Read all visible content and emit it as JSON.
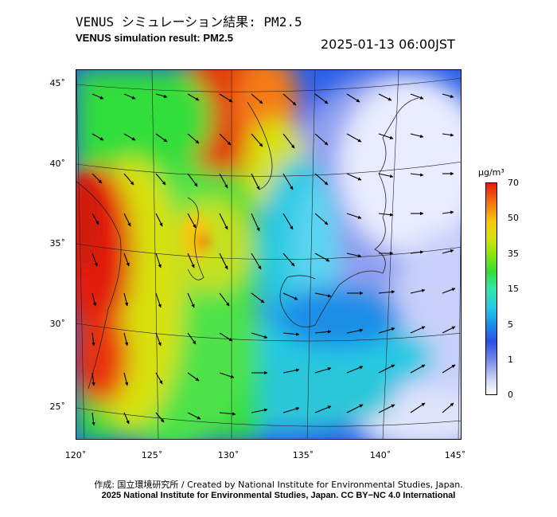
{
  "header": {
    "title_jp": "VENUS シミュレーション結果: PM2.5",
    "title_en": "VENUS simulation result: PM2.5",
    "timestamp": "2025-01-13 06:00JST"
  },
  "map": {
    "latitude_labels": [
      "45˚",
      "40˚",
      "35˚",
      "30˚",
      "25˚"
    ],
    "longitude_labels": [
      "120˚",
      "125˚",
      "130˚",
      "135˚",
      "140˚",
      "145˚"
    ],
    "colors": {
      "ocean_clean": "#2a5fe8",
      "clean_white": "#f2f2ff",
      "moderate_green": "#33de3a",
      "high_red": "#e21d0e",
      "mid_yellow": "#d7e10f"
    }
  },
  "colorbar": {
    "unit": "μg/m³",
    "ticks": [
      "70",
      "50",
      "35",
      "15",
      "5",
      "1",
      "0"
    ]
  },
  "footer": {
    "credit_jp": "作成: 国立環境研究所 / Created by National Institute for Environmental Studies, Japan.",
    "license": "2025 National Institute for Environmental Studies, Japan. CC BY−NC 4.0 International"
  }
}
